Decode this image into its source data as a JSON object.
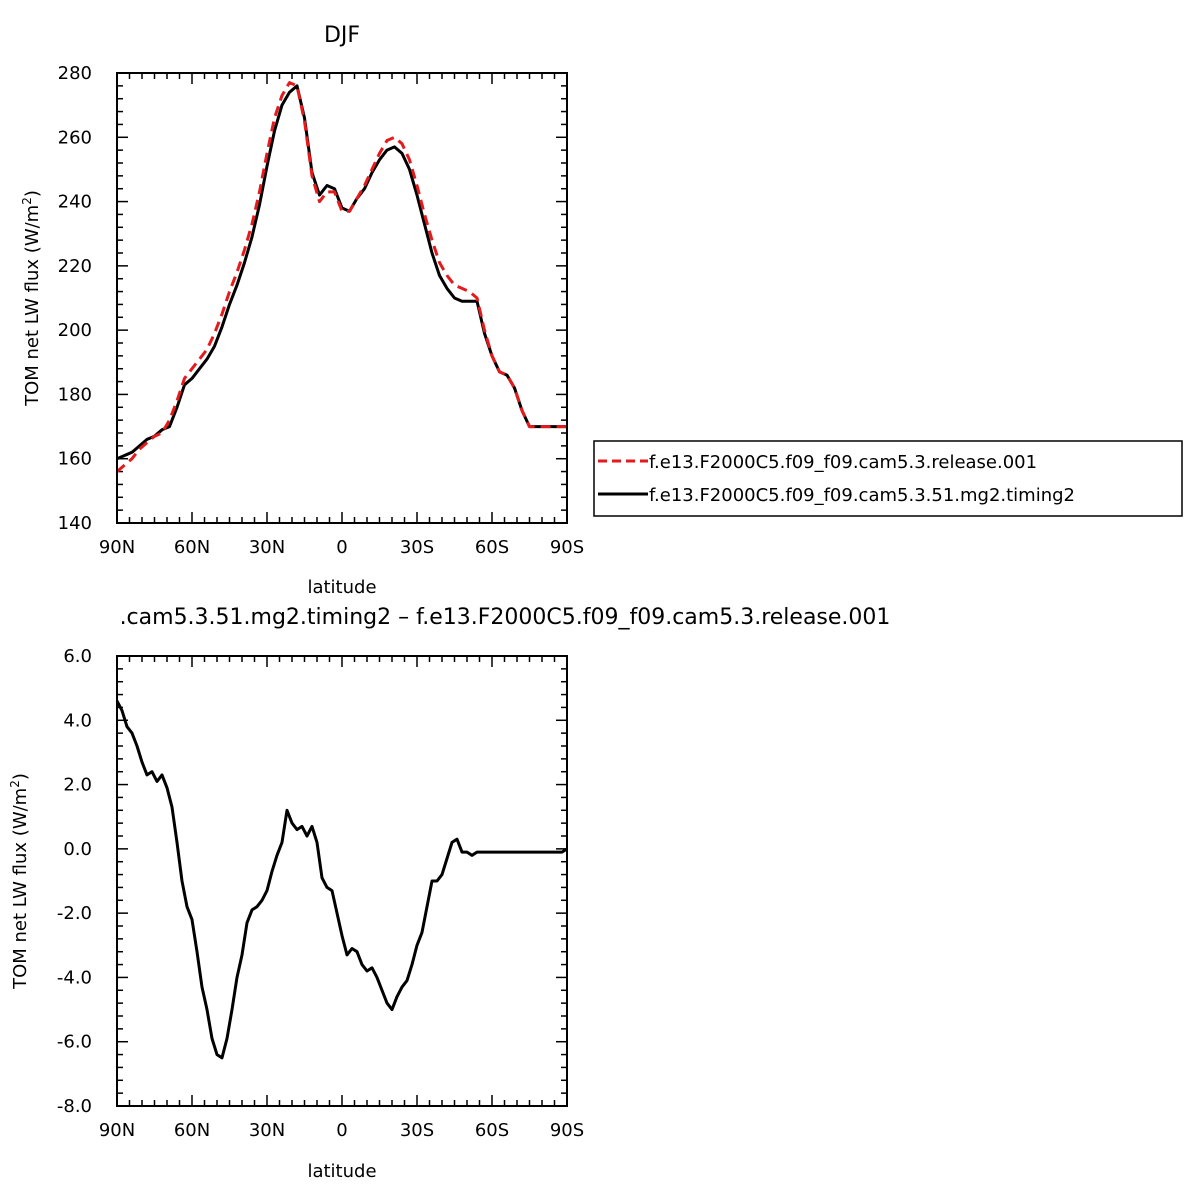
{
  "chart_data": [
    {
      "type": "line",
      "title": "DJF",
      "xlabel": "latitude",
      "ylabel": "TOM net LW flux (W/m",
      "ylabel_sup": "2",
      "ylabel_tail": ")",
      "xlim": [
        90,
        -90
      ],
      "ylim": [
        140,
        280
      ],
      "x_ticks": [
        90,
        60,
        30,
        0,
        -30,
        -60,
        -90
      ],
      "x_tick_labels": [
        "90N",
        "60N",
        "30N",
        "0",
        "30S",
        "60S",
        "90S"
      ],
      "y_ticks": [
        140,
        160,
        180,
        200,
        220,
        240,
        260,
        280
      ],
      "y_tick_labels": [
        "140",
        "160",
        "180",
        "200",
        "220",
        "240",
        "260",
        "280"
      ],
      "legend_position": "right",
      "series": [
        {
          "name": "f.e13.F2000C5.f09_f09.cam5.3.release.001",
          "color": "#e41a1c",
          "dash": "dashed",
          "x": [
            90,
            87,
            84,
            81,
            78,
            75,
            72,
            69,
            66,
            63,
            60,
            57,
            54,
            51,
            48,
            45,
            42,
            39,
            36,
            33,
            30,
            27,
            24,
            21,
            18,
            15,
            12,
            9,
            6,
            3,
            0,
            -3,
            -6,
            -9,
            -12,
            -15,
            -18,
            -21,
            -24,
            -27,
            -30,
            -33,
            -36,
            -39,
            -42,
            -45,
            -48,
            -51,
            -54,
            -57,
            -60,
            -63,
            -66,
            -69,
            -72,
            -75,
            -78,
            -81,
            -84,
            -87,
            -90
          ],
          "y": [
            156,
            158,
            160,
            163,
            165,
            167,
            168,
            172,
            178,
            185,
            188,
            191,
            194,
            199,
            205,
            212,
            218,
            225,
            233,
            243,
            255,
            266,
            273,
            277,
            276,
            265,
            248,
            240,
            243,
            243,
            237,
            237,
            241,
            245,
            250,
            255,
            259,
            260,
            258,
            253,
            245,
            236,
            228,
            221,
            217,
            214,
            213,
            212,
            210,
            200,
            192,
            187,
            186,
            182,
            175,
            170,
            170,
            170,
            170,
            170,
            170
          ]
        },
        {
          "name": "f.e13.F2000C5.f09_f09.cam5.3.51.mg2.timing2",
          "color": "#000000",
          "dash": "solid",
          "x": [
            90,
            87,
            84,
            81,
            78,
            75,
            72,
            69,
            66,
            63,
            60,
            57,
            54,
            51,
            48,
            45,
            42,
            39,
            36,
            33,
            30,
            27,
            24,
            21,
            18,
            15,
            12,
            9,
            6,
            3,
            0,
            -3,
            -6,
            -9,
            -12,
            -15,
            -18,
            -21,
            -24,
            -27,
            -30,
            -33,
            -36,
            -39,
            -42,
            -45,
            -48,
            -51,
            -54,
            -57,
            -60,
            -63,
            -66,
            -69,
            -72,
            -75,
            -78,
            -81,
            -84,
            -87,
            -90
          ],
          "y": [
            160,
            161,
            162,
            164,
            166,
            167,
            169,
            170,
            176,
            183,
            185,
            188,
            191,
            195,
            201,
            208,
            214,
            221,
            229,
            239,
            251,
            262,
            270,
            274,
            276,
            266,
            249,
            242,
            245,
            244,
            238,
            237,
            241,
            244,
            249,
            253,
            256,
            257,
            255,
            250,
            242,
            233,
            224,
            217,
            213,
            210,
            209,
            209,
            209,
            199,
            192,
            187,
            186,
            182,
            175,
            170,
            170,
            170,
            170,
            170,
            170
          ]
        }
      ]
    },
    {
      "type": "line",
      "title": ".cam5.3.51.mg2.timing2 – f.e13.F2000C5.f09_f09.cam5.3.release.001",
      "xlabel": "latitude",
      "ylabel": "TOM net LW flux (W/m",
      "ylabel_sup": "2",
      "ylabel_tail": ")",
      "xlim": [
        90,
        -90
      ],
      "ylim": [
        -8,
        6
      ],
      "x_ticks": [
        90,
        60,
        30,
        0,
        -30,
        -60,
        -90
      ],
      "x_tick_labels": [
        "90N",
        "60N",
        "30N",
        "0",
        "30S",
        "60S",
        "90S"
      ],
      "y_ticks": [
        -8,
        -6,
        -4,
        -2,
        0,
        2,
        4,
        6
      ],
      "y_tick_labels": [
        "-8.0",
        "-6.0",
        "-4.0",
        "-2.0",
        "0.0",
        "2.0",
        "4.0",
        "6.0"
      ],
      "series": [
        {
          "color": "#000000",
          "dash": "solid",
          "x": [
            90,
            88,
            86,
            84,
            82,
            80,
            78,
            76,
            74,
            72,
            70,
            68,
            66,
            64,
            62,
            60,
            58,
            56,
            54,
            52,
            50,
            48,
            46,
            44,
            42,
            40,
            38,
            36,
            34,
            32,
            30,
            28,
            26,
            24,
            22,
            20,
            18,
            16,
            14,
            12,
            10,
            8,
            6,
            4,
            2,
            0,
            -2,
            -4,
            -6,
            -8,
            -10,
            -12,
            -14,
            -16,
            -18,
            -20,
            -22,
            -24,
            -26,
            -28,
            -30,
            -32,
            -34,
            -36,
            -38,
            -40,
            -42,
            -44,
            -46,
            -48,
            -50,
            -52,
            -54,
            -56,
            -58,
            -60,
            -62,
            -64,
            -66,
            -68,
            -70,
            -72,
            -74,
            -76,
            -78,
            -80,
            -82,
            -84,
            -86,
            -88,
            -90
          ],
          "y": [
            4.6,
            4.3,
            3.8,
            3.6,
            3.2,
            2.7,
            2.3,
            2.4,
            2.1,
            2.3,
            1.9,
            1.3,
            0.2,
            -1.0,
            -1.8,
            -2.2,
            -3.2,
            -4.3,
            -5.0,
            -5.9,
            -6.4,
            -6.5,
            -5.9,
            -5.0,
            -4.0,
            -3.3,
            -2.3,
            -1.9,
            -1.8,
            -1.6,
            -1.3,
            -0.7,
            -0.2,
            0.2,
            1.2,
            0.8,
            0.6,
            0.7,
            0.4,
            0.7,
            0.2,
            -0.9,
            -1.2,
            -1.3,
            -2.0,
            -2.7,
            -3.3,
            -3.1,
            -3.2,
            -3.6,
            -3.8,
            -3.7,
            -4.0,
            -4.4,
            -4.8,
            -5.0,
            -4.6,
            -4.3,
            -4.1,
            -3.6,
            -3.0,
            -2.6,
            -1.8,
            -1.0,
            -1.0,
            -0.8,
            -0.3,
            0.2,
            0.3,
            -0.1,
            -0.1,
            -0.2,
            -0.1,
            -0.1,
            -0.1,
            -0.1,
            -0.1,
            -0.1,
            -0.1,
            -0.1,
            -0.1,
            -0.1,
            -0.1,
            -0.1,
            -0.1,
            -0.1,
            -0.1,
            -0.1,
            -0.1,
            -0.1,
            0.0
          ]
        }
      ]
    }
  ]
}
